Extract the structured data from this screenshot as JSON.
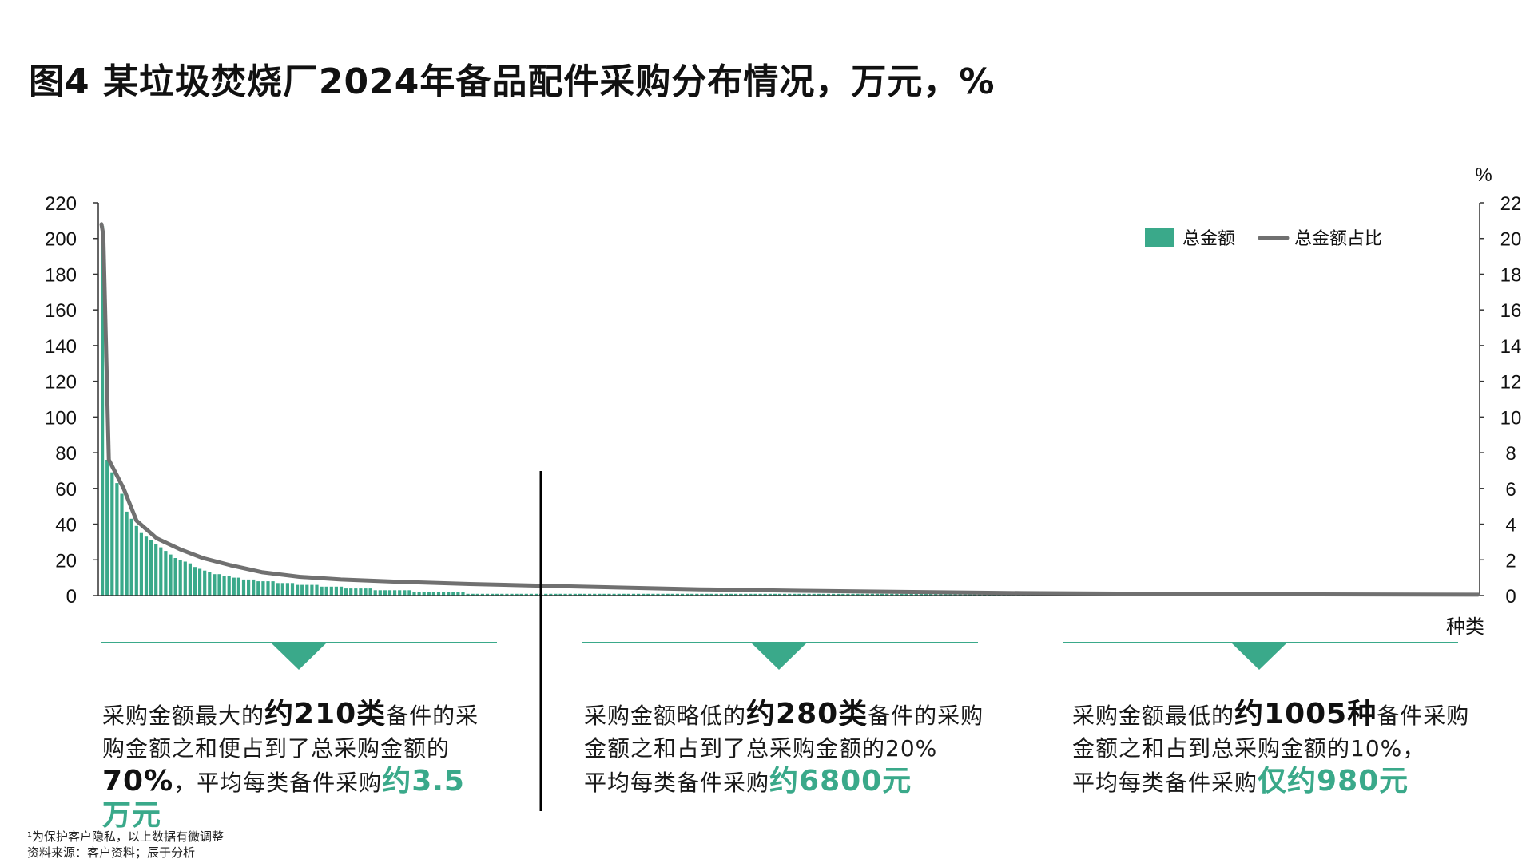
{
  "title": "图4 某垃圾焚烧厂2024年备品配件采购分布情况，万元，%",
  "colors": {
    "bar": "#3aa98a",
    "line": "#707070",
    "text": "#111111",
    "divider": "#000000"
  },
  "chart_data": {
    "type": "bar",
    "title": "图4 某垃圾焚烧厂2024年备品配件采购分布情况，万元，%",
    "xlabel": "种类",
    "y_left": {
      "ylim": [
        0,
        220
      ],
      "ticks": [
        0,
        20,
        40,
        60,
        80,
        100,
        120,
        140,
        160,
        180,
        200,
        220
      ]
    },
    "y_right": {
      "unit_label": "%",
      "ylim": [
        0,
        22
      ],
      "ticks": [
        0,
        2,
        4,
        6,
        8,
        10,
        12,
        14,
        16,
        18,
        20,
        22
      ]
    },
    "legend": {
      "position": "top-right",
      "entries": [
        "总金额",
        "总金额占比"
      ]
    },
    "series": [
      {
        "name": "总金额",
        "kind": "bar",
        "values": [
          207,
          76,
          69,
          63,
          57,
          47,
          43,
          39,
          35,
          33,
          31,
          29,
          27,
          25,
          23,
          21,
          20,
          19,
          18,
          16,
          15,
          14,
          13,
          12,
          12,
          11,
          11,
          10,
          10,
          9,
          9,
          9,
          8,
          8,
          8,
          8,
          7,
          7,
          7,
          7,
          6,
          6,
          6,
          6,
          6,
          5,
          5,
          5,
          5,
          5,
          4,
          4,
          4,
          4,
          4,
          4,
          3,
          3,
          3,
          3,
          3,
          3,
          3,
          3,
          2,
          2,
          2,
          2,
          2,
          2,
          2,
          2,
          2,
          2,
          2,
          1,
          1,
          1,
          1,
          1,
          1,
          1,
          1,
          1,
          1,
          1,
          1,
          1,
          1,
          1,
          1,
          1,
          1,
          1,
          1,
          1,
          1,
          1,
          1,
          1,
          1,
          1,
          1,
          1,
          1,
          1,
          1,
          1,
          1,
          1,
          1,
          1,
          1,
          1,
          1,
          1,
          1,
          1,
          1,
          1,
          1,
          1,
          1,
          1,
          1,
          1,
          1,
          1,
          1,
          1,
          1,
          1,
          1,
          1,
          1,
          1,
          1,
          1,
          1,
          1,
          1,
          1,
          1,
          1,
          1,
          1,
          1,
          1,
          1,
          1,
          1,
          1,
          1,
          1,
          1,
          1,
          1,
          1,
          1,
          1,
          1,
          1,
          1,
          1,
          1,
          1,
          1,
          1,
          1,
          1,
          1,
          1,
          1,
          1,
          1,
          1,
          1,
          1,
          1,
          1,
          1,
          1,
          1,
          1,
          1,
          1,
          1,
          1,
          1,
          1,
          1,
          1,
          1,
          1,
          1,
          1
        ]
      },
      {
        "name": "总金额占比",
        "kind": "line",
        "axis": "right",
        "points": [
          [
            0,
            20.8
          ],
          [
            2,
            20.2
          ],
          [
            8,
            7.6
          ],
          [
            24,
            6.0
          ],
          [
            38,
            4.2
          ],
          [
            60,
            3.2
          ],
          [
            85,
            2.6
          ],
          [
            110,
            2.1
          ],
          [
            140,
            1.7
          ],
          [
            175,
            1.3
          ],
          [
            215,
            1.05
          ],
          [
            260,
            0.9
          ],
          [
            320,
            0.78
          ],
          [
            400,
            0.65
          ],
          [
            480,
            0.55
          ],
          [
            560,
            0.45
          ],
          [
            650,
            0.35
          ],
          [
            760,
            0.27
          ],
          [
            880,
            0.2
          ],
          [
            1000,
            0.14
          ],
          [
            1150,
            0.1
          ],
          [
            1300,
            0.07
          ],
          [
            1495,
            0.05
          ]
        ]
      }
    ]
  },
  "notes": [
    {
      "p1": "采购金额最大的",
      "b1": "约210类",
      "p2": "备件的采购金额之和便占到了总采购金额的",
      "b2": "70%",
      "p3": "，平均每类备件采购",
      "h": "约3.5万元"
    },
    {
      "p1": "采购金额略低的",
      "b1": "约280类",
      "p2": "备件的采购金额之和占到了总采购金额的20%",
      "p3": "平均每类备件采购",
      "h": "约6800元"
    },
    {
      "p1": "采购金额最低的",
      "b1": "约1005种",
      "p2": "备件采购金额之和占到总采购金额的10%，",
      "p3": "平均每类备件采购",
      "h": "仅约980元"
    }
  ],
  "footnote": {
    "line1": "¹为保护客户隐私，以上数据有微调整",
    "line2": "资料来源：客户资料；辰于分析"
  }
}
